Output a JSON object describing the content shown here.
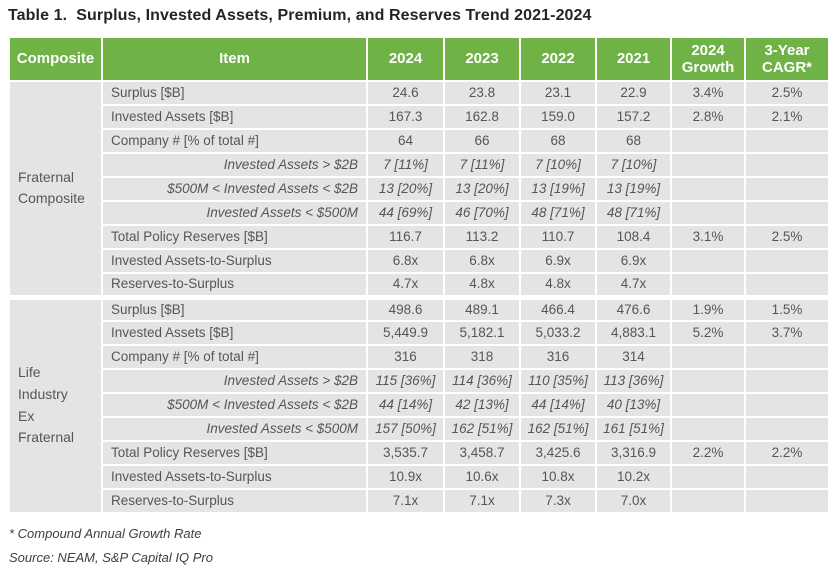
{
  "title": "Table 1.  Surplus, Invested Assets, Premium, and Reserves Trend 2021-2024",
  "colors": {
    "header_green": "#6fb246",
    "header_text": "#ffffff",
    "row_gray": "#e4e4e5",
    "body_text": "#55565b",
    "title_text": "#22252c"
  },
  "table": {
    "headers": [
      "Composite",
      "Item",
      "2024",
      "2023",
      "2022",
      "2021",
      "2024 Growth",
      "3-Year CAGR*"
    ],
    "groups": [
      {
        "label": "Fraternal Composite",
        "rows": [
          {
            "item": "Surplus [$B]",
            "italic": false,
            "values": [
              "24.6",
              "23.8",
              "23.1",
              "22.9"
            ],
            "growth": "3.4%",
            "cagr": "2.5%"
          },
          {
            "item": "Invested Assets [$B]",
            "italic": false,
            "values": [
              "167.3",
              "162.8",
              "159.0",
              "157.2"
            ],
            "growth": "2.8%",
            "cagr": "2.1%"
          },
          {
            "item": "Company # [% of total #]",
            "italic": false,
            "values": [
              "64",
              "66",
              "68",
              "68"
            ],
            "growth": "",
            "cagr": ""
          },
          {
            "item": "Invested Assets > $2B",
            "italic": true,
            "values": [
              "7 [11%]",
              "7 [11%]",
              "7 [10%]",
              "7 [10%]"
            ],
            "growth": "",
            "cagr": ""
          },
          {
            "item": "$500M < Invested Assets < $2B",
            "italic": true,
            "values": [
              "13 [20%]",
              "13 [20%]",
              "13 [19%]",
              "13 [19%]"
            ],
            "growth": "",
            "cagr": ""
          },
          {
            "item": "Invested Assets < $500M",
            "italic": true,
            "values": [
              "44 [69%]",
              "46 [70%]",
              "48 [71%]",
              "48 [71%]"
            ],
            "growth": "",
            "cagr": ""
          },
          {
            "item": "Total Policy Reserves [$B]",
            "italic": false,
            "values": [
              "116.7",
              "113.2",
              "110.7",
              "108.4"
            ],
            "growth": "3.1%",
            "cagr": "2.5%"
          },
          {
            "item": "Invested Assets-to-Surplus",
            "italic": false,
            "values": [
              "6.8x",
              "6.8x",
              "6.9x",
              "6.9x"
            ],
            "growth": "",
            "cagr": ""
          },
          {
            "item": "Reserves-to-Surplus",
            "italic": false,
            "values": [
              "4.7x",
              "4.8x",
              "4.8x",
              "4.7x"
            ],
            "growth": "",
            "cagr": ""
          }
        ]
      },
      {
        "label": "Life Industry Ex Fraternal",
        "rows": [
          {
            "item": "Surplus [$B]",
            "italic": false,
            "values": [
              "498.6",
              "489.1",
              "466.4",
              "476.6"
            ],
            "growth": "1.9%",
            "cagr": "1.5%"
          },
          {
            "item": "Invested Assets [$B]",
            "italic": false,
            "values": [
              "5,449.9",
              "5,182.1",
              "5,033.2",
              "4,883.1"
            ],
            "growth": "5.2%",
            "cagr": "3.7%"
          },
          {
            "item": "Company # [% of total #]",
            "italic": false,
            "values": [
              "316",
              "318",
              "316",
              "314"
            ],
            "growth": "",
            "cagr": ""
          },
          {
            "item": "Invested Assets > $2B",
            "italic": true,
            "values": [
              "115 [36%]",
              "114 [36%]",
              "110 [35%]",
              "113 [36%]"
            ],
            "growth": "",
            "cagr": ""
          },
          {
            "item": "$500M < Invested Assets < $2B",
            "italic": true,
            "values": [
              "44 [14%]",
              "42 [13%]",
              "44 [14%]",
              "40 [13%]"
            ],
            "growth": "",
            "cagr": ""
          },
          {
            "item": "Invested Assets < $500M",
            "italic": true,
            "values": [
              "157 [50%]",
              "162 [51%]",
              "162 [51%]",
              "161 [51%]"
            ],
            "growth": "",
            "cagr": ""
          },
          {
            "item": "Total Policy Reserves [$B]",
            "italic": false,
            "values": [
              "3,535.7",
              "3,458.7",
              "3,425.6",
              "3,316.9"
            ],
            "growth": "2.2%",
            "cagr": "2.2%"
          },
          {
            "item": "Invested Assets-to-Surplus",
            "italic": false,
            "values": [
              "10.9x",
              "10.6x",
              "10.8x",
              "10.2x"
            ],
            "growth": "",
            "cagr": ""
          },
          {
            "item": "Reserves-to-Surplus",
            "italic": false,
            "values": [
              "7.1x",
              "7.1x",
              "7.3x",
              "7.0x"
            ],
            "growth": "",
            "cagr": ""
          }
        ]
      }
    ]
  },
  "footnotes": {
    "cagr_note": "* Compound Annual Growth Rate",
    "source": "Source: NEAM, S&P Capital IQ Pro"
  }
}
